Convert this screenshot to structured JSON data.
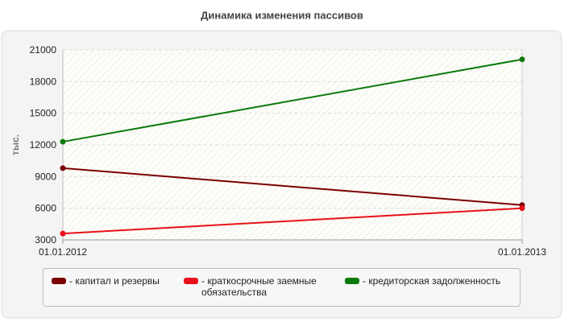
{
  "chart_data": {
    "type": "line",
    "title": "Динамика изменения пассивов",
    "y_label": "тыс.",
    "categories": [
      "01.01.2012",
      "01.01.2013"
    ],
    "series": [
      {
        "name": "- капитал и резервы",
        "color": "#7a0000",
        "values": [
          9800,
          6300
        ]
      },
      {
        "name": "- краткосрочные заемные обязательства",
        "color": "#e8101a",
        "values": [
          3600,
          6000
        ]
      },
      {
        "name": "- кредиторская задолженность",
        "color": "#0a7a0a",
        "values": [
          12300,
          20100
        ]
      }
    ],
    "ylim": [
      3000,
      21000
    ],
    "yticks": [
      3000,
      6000,
      9000,
      12000,
      15000,
      18000,
      21000
    ],
    "grid": true
  }
}
